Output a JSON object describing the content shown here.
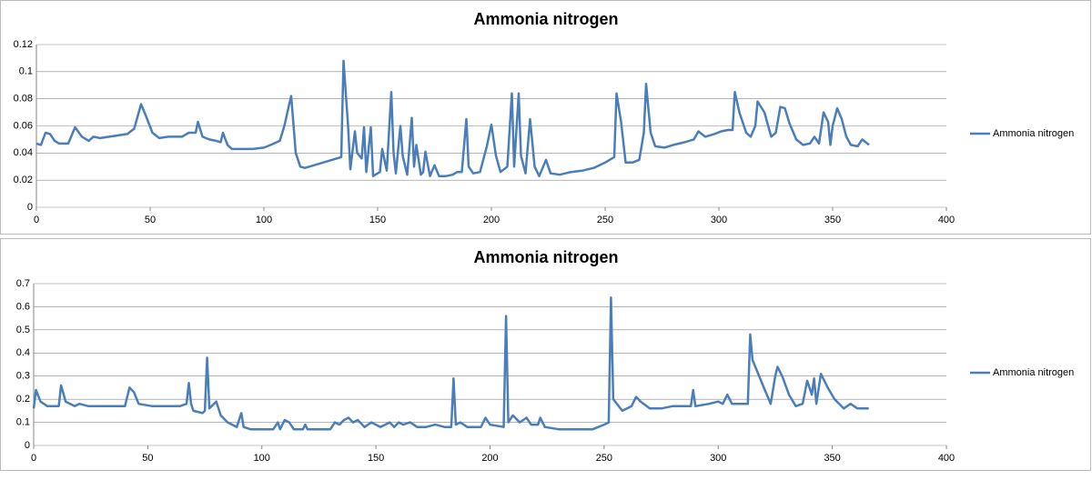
{
  "chart_data": [
    {
      "type": "line",
      "title": "Ammonia nitrogen",
      "x": [
        0,
        2,
        4,
        6,
        8,
        10,
        14,
        17,
        20,
        23,
        25,
        28,
        32,
        36,
        40,
        43,
        46,
        48,
        51,
        54,
        58,
        64,
        67,
        70,
        71,
        73,
        76,
        79,
        81,
        82,
        84,
        86,
        90,
        95,
        100,
        103,
        107,
        109,
        111,
        112,
        114,
        116,
        118,
        122,
        128,
        134,
        135,
        137,
        138,
        140,
        141,
        143,
        144,
        145,
        147,
        148,
        150,
        151,
        152,
        154,
        156,
        157,
        158,
        160,
        161,
        163,
        165,
        166,
        167,
        169,
        170,
        171,
        173,
        175,
        177,
        180,
        183,
        185,
        187,
        189,
        190,
        192,
        195,
        198,
        200,
        202,
        204,
        207,
        209,
        210,
        212,
        213,
        215,
        217,
        219,
        221,
        224,
        226,
        230,
        235,
        240,
        245,
        250,
        254,
        255,
        257,
        259,
        262,
        265,
        267,
        268,
        270,
        272,
        276,
        280,
        285,
        289,
        291,
        294,
        298,
        301,
        304,
        306,
        307,
        309,
        312,
        314,
        316,
        317,
        320,
        323,
        325,
        327,
        329,
        331,
        334,
        337,
        340,
        342,
        344,
        346,
        348,
        349,
        350,
        352,
        354,
        356,
        358,
        361,
        363,
        366
      ],
      "series": [
        {
          "name": "Ammonia nitrogen",
          "color": "#4a7ebb",
          "values": [
            0.047,
            0.046,
            0.055,
            0.054,
            0.049,
            0.047,
            0.047,
            0.059,
            0.052,
            0.049,
            0.052,
            0.051,
            0.052,
            0.053,
            0.054,
            0.058,
            0.076,
            0.068,
            0.055,
            0.051,
            0.052,
            0.052,
            0.055,
            0.055,
            0.063,
            0.052,
            0.05,
            0.049,
            0.048,
            0.055,
            0.046,
            0.043,
            0.043,
            0.043,
            0.044,
            0.046,
            0.049,
            0.06,
            0.075,
            0.082,
            0.04,
            0.03,
            0.029,
            0.031,
            0.034,
            0.037,
            0.108,
            0.06,
            0.028,
            0.056,
            0.04,
            0.036,
            0.059,
            0.026,
            0.059,
            0.023,
            0.025,
            0.026,
            0.043,
            0.027,
            0.085,
            0.04,
            0.025,
            0.06,
            0.038,
            0.024,
            0.066,
            0.03,
            0.046,
            0.024,
            0.026,
            0.041,
            0.023,
            0.031,
            0.023,
            0.023,
            0.024,
            0.026,
            0.026,
            0.065,
            0.03,
            0.025,
            0.026,
            0.045,
            0.061,
            0.038,
            0.026,
            0.03,
            0.084,
            0.03,
            0.084,
            0.038,
            0.025,
            0.065,
            0.03,
            0.023,
            0.035,
            0.025,
            0.024,
            0.026,
            0.027,
            0.029,
            0.033,
            0.037,
            0.084,
            0.063,
            0.033,
            0.033,
            0.035,
            0.055,
            0.091,
            0.055,
            0.045,
            0.044,
            0.046,
            0.048,
            0.05,
            0.056,
            0.052,
            0.054,
            0.056,
            0.057,
            0.057,
            0.085,
            0.07,
            0.055,
            0.052,
            0.06,
            0.078,
            0.07,
            0.052,
            0.055,
            0.074,
            0.073,
            0.062,
            0.05,
            0.046,
            0.047,
            0.052,
            0.047,
            0.07,
            0.063,
            0.046,
            0.06,
            0.073,
            0.065,
            0.052,
            0.046,
            0.045,
            0.05,
            0.046
          ]
        }
      ],
      "xlim": [
        0,
        400
      ],
      "xticks": [
        0,
        50,
        100,
        150,
        200,
        250,
        300,
        350,
        400
      ],
      "ylim": [
        0,
        0.12
      ],
      "yticks": [
        0,
        0.02,
        0.04,
        0.06,
        0.08,
        0.1,
        0.12
      ],
      "grid": true,
      "legend": "right"
    },
    {
      "type": "line",
      "title": "Ammonia nitrogen",
      "x": [
        0,
        1,
        3,
        6,
        11,
        12,
        14,
        18,
        20,
        24,
        30,
        38,
        40,
        42,
        44,
        46,
        52,
        56,
        60,
        64,
        67,
        68,
        69,
        70,
        74,
        75,
        76,
        77,
        80,
        82,
        85,
        89,
        91,
        92,
        95,
        105,
        107,
        108,
        110,
        112,
        114,
        118,
        119,
        120,
        130,
        132,
        134,
        136,
        138,
        140,
        142,
        145,
        148,
        152,
        156,
        158,
        160,
        162,
        165,
        168,
        172,
        176,
        180,
        183,
        184,
        185,
        187,
        190,
        196,
        198,
        200,
        206,
        207,
        208,
        210,
        213,
        216,
        218,
        221,
        222,
        224,
        230,
        245,
        250,
        252,
        253,
        254,
        258,
        262,
        264,
        266,
        270,
        275,
        280,
        288,
        289,
        290,
        296,
        300,
        302,
        304,
        306,
        313,
        314,
        315,
        320,
        323,
        325,
        326,
        328,
        331,
        334,
        337,
        339,
        341,
        342,
        343,
        345,
        348,
        351,
        355,
        358,
        361,
        366
      ],
      "series": [
        {
          "name": "Ammonia nitrogen",
          "color": "#4a7ebb",
          "values": [
            0.16,
            0.24,
            0.19,
            0.17,
            0.17,
            0.26,
            0.19,
            0.17,
            0.18,
            0.17,
            0.17,
            0.17,
            0.17,
            0.25,
            0.23,
            0.18,
            0.17,
            0.17,
            0.17,
            0.17,
            0.18,
            0.27,
            0.18,
            0.15,
            0.14,
            0.15,
            0.38,
            0.16,
            0.19,
            0.13,
            0.1,
            0.08,
            0.14,
            0.08,
            0.07,
            0.07,
            0.1,
            0.07,
            0.11,
            0.1,
            0.07,
            0.07,
            0.09,
            0.07,
            0.07,
            0.1,
            0.09,
            0.11,
            0.12,
            0.1,
            0.11,
            0.08,
            0.1,
            0.08,
            0.1,
            0.08,
            0.1,
            0.09,
            0.1,
            0.08,
            0.08,
            0.09,
            0.08,
            0.08,
            0.29,
            0.09,
            0.1,
            0.08,
            0.08,
            0.12,
            0.09,
            0.08,
            0.56,
            0.1,
            0.13,
            0.1,
            0.12,
            0.09,
            0.09,
            0.12,
            0.08,
            0.07,
            0.07,
            0.09,
            0.1,
            0.64,
            0.2,
            0.15,
            0.17,
            0.21,
            0.19,
            0.16,
            0.16,
            0.17,
            0.17,
            0.24,
            0.17,
            0.18,
            0.19,
            0.18,
            0.22,
            0.18,
            0.18,
            0.48,
            0.37,
            0.25,
            0.18,
            0.3,
            0.34,
            0.3,
            0.22,
            0.17,
            0.18,
            0.28,
            0.22,
            0.29,
            0.18,
            0.31,
            0.25,
            0.2,
            0.16,
            0.18,
            0.16,
            0.16
          ]
        }
      ],
      "xlim": [
        0,
        400
      ],
      "xticks": [
        0,
        50,
        100,
        150,
        200,
        250,
        300,
        350,
        400
      ],
      "ylim": [
        0,
        0.7
      ],
      "yticks": [
        0,
        0.1,
        0.2,
        0.3,
        0.4,
        0.5,
        0.6,
        0.7
      ],
      "grid": true,
      "legend": "right"
    }
  ]
}
